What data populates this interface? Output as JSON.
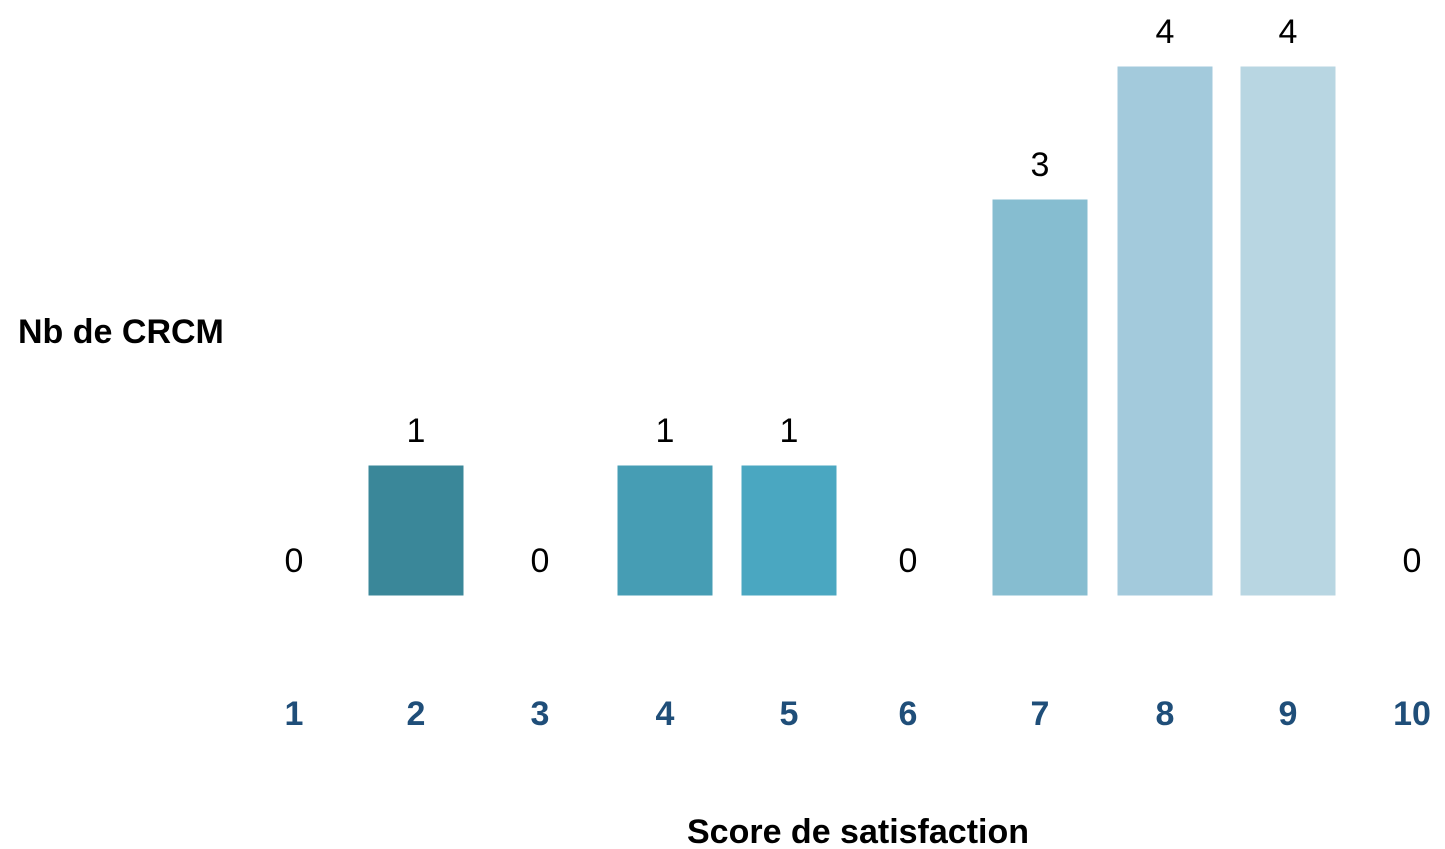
{
  "chart_data": {
    "type": "bar",
    "title": "",
    "xlabel": "Score de satisfaction",
    "ylabel": "Nb de CRCM",
    "categories": [
      "1",
      "2",
      "3",
      "4",
      "5",
      "6",
      "7",
      "8",
      "9",
      "10"
    ],
    "values": [
      0,
      1,
      0,
      1,
      1,
      0,
      3,
      4,
      4,
      0
    ],
    "data_labels": [
      "0",
      "1",
      "0",
      "1",
      "1",
      "0",
      "3",
      "4",
      "4",
      "0"
    ],
    "ylim": [
      0,
      4
    ],
    "grid": false,
    "legend": "none",
    "bar_colors": [
      "#3a8799",
      "#3a8799",
      "#469db4",
      "#469db4",
      "#4aa7c1",
      "#83bdd1",
      "#86bdd0",
      "#a3cadc",
      "#b8d6e2",
      "#b8d6e2"
    ],
    "tick_color": "#1f4e79"
  }
}
